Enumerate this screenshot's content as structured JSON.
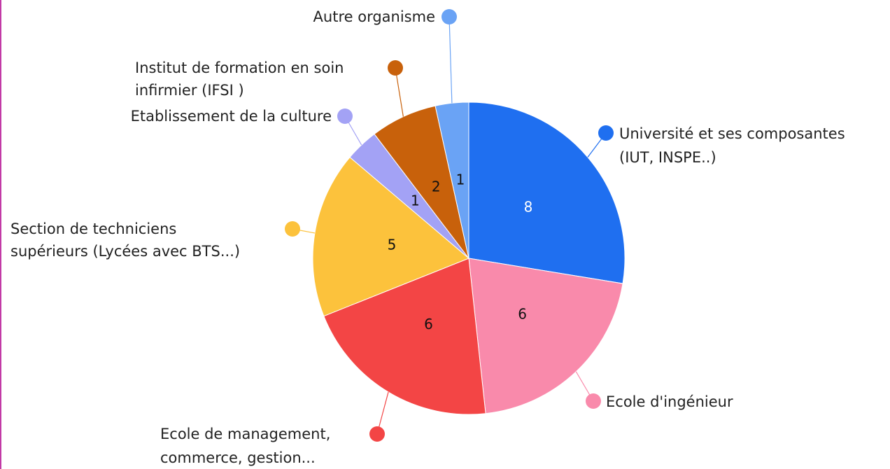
{
  "chart_data": {
    "type": "pie",
    "categories": [
      [
        "Université et ses composantes",
        "(IUT, INSPE..)"
      ],
      [
        "Ecole d'ingénieur"
      ],
      [
        "Ecole de management,",
        " commerce, gestion..."
      ],
      [
        "Section de techniciens",
        "supérieurs (Lycées avec BTS...)"
      ],
      [
        "Etablissement de la culture"
      ],
      [
        "Institut de formation en soin",
        "infirmier (IFSI )"
      ],
      [
        "Autre organisme"
      ]
    ],
    "values": [
      8,
      6,
      6,
      5,
      1,
      2,
      1
    ],
    "colors": [
      "#1f6ff0",
      "#f98aab",
      "#f34545",
      "#fcc23c",
      "#a3a2f5",
      "#c8610b",
      "#6aa3f5"
    ],
    "value_label_colors": [
      "#ffffff",
      "#111111",
      "#111111",
      "#111111",
      "#111111",
      "#111111",
      "#111111"
    ]
  }
}
